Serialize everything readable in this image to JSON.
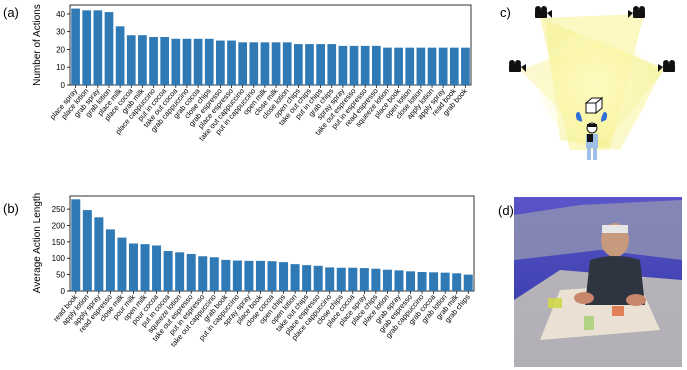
{
  "panels": {
    "a": "(a)",
    "b": "(b)",
    "c": "c)",
    "d": "(d)"
  },
  "colors": {
    "bar": "#2f79b5",
    "light": "#f7f290",
    "pointcloud_bg": "#3a3fae"
  },
  "chart_data": [
    {
      "type": "bar",
      "title": "",
      "xlabel": "",
      "ylabel": "Number of Actions",
      "ylim": [
        0,
        45
      ],
      "yticks": [
        0,
        10,
        20,
        30,
        40
      ],
      "grid": false,
      "categories": [
        "place spray",
        "place lotion",
        "grab spray",
        "grab lotion",
        "place milk",
        "place cocoa",
        "grab milk",
        "place cappuccino",
        "put in cocoa",
        "take out cocoa",
        "grab cappuccino",
        "grab cocoa",
        "close chips",
        "grab espresso",
        "place espresso",
        "take out cappuccino",
        "put in cappuccino",
        "open milk",
        "close milk",
        "close lotion",
        "open chips",
        "take out chips",
        "put in chips",
        "grab chips",
        "spray spray",
        "take out espresso",
        "put in espresso",
        "read espresso",
        "squeeze lotion",
        "place book",
        "open lotion",
        "close lotion",
        "apply lotion",
        "apply spray",
        "read book",
        "grab book"
      ],
      "values": [
        43,
        42,
        42,
        41,
        33,
        28,
        28,
        27,
        27,
        26,
        26,
        26,
        26,
        25,
        25,
        24,
        24,
        24,
        24,
        24,
        23,
        23,
        23,
        23,
        22,
        22,
        22,
        22,
        21,
        21,
        21,
        21,
        21,
        21,
        21,
        21
      ]
    },
    {
      "type": "bar",
      "title": "",
      "xlabel": "",
      "ylabel": "Average Action Length",
      "ylim": [
        0,
        290
      ],
      "yticks": [
        0,
        50,
        100,
        150,
        200,
        250
      ],
      "grid": false,
      "categories": [
        "read book",
        "apply lotion",
        "apply spray",
        "read espresso",
        "close milk",
        "pour milk",
        "open milk",
        "pour cocoa",
        "put in cocoa",
        "squeeze lotion",
        "take out espresso",
        "put in espresso",
        "take out cappuccino",
        "grab book",
        "put in cappuccino",
        "spray spray",
        "place book",
        "close cocoa",
        "open chips",
        "open lotion",
        "take out chips",
        "place espresso",
        "place cappuccino",
        "close chips",
        "place cocoa",
        "place spray",
        "place chips",
        "place lotion",
        "grab spray",
        "grab espresso",
        "grab cappuccino",
        "grab cocoa",
        "grab lotion",
        "grab milk",
        "grab chips"
      ],
      "values": [
        280,
        247,
        225,
        188,
        163,
        145,
        143,
        139,
        122,
        118,
        113,
        106,
        103,
        95,
        93,
        92,
        92,
        91,
        88,
        82,
        79,
        77,
        72,
        71,
        71,
        70,
        68,
        65,
        63,
        60,
        58,
        57,
        56,
        54,
        50
      ]
    }
  ]
}
